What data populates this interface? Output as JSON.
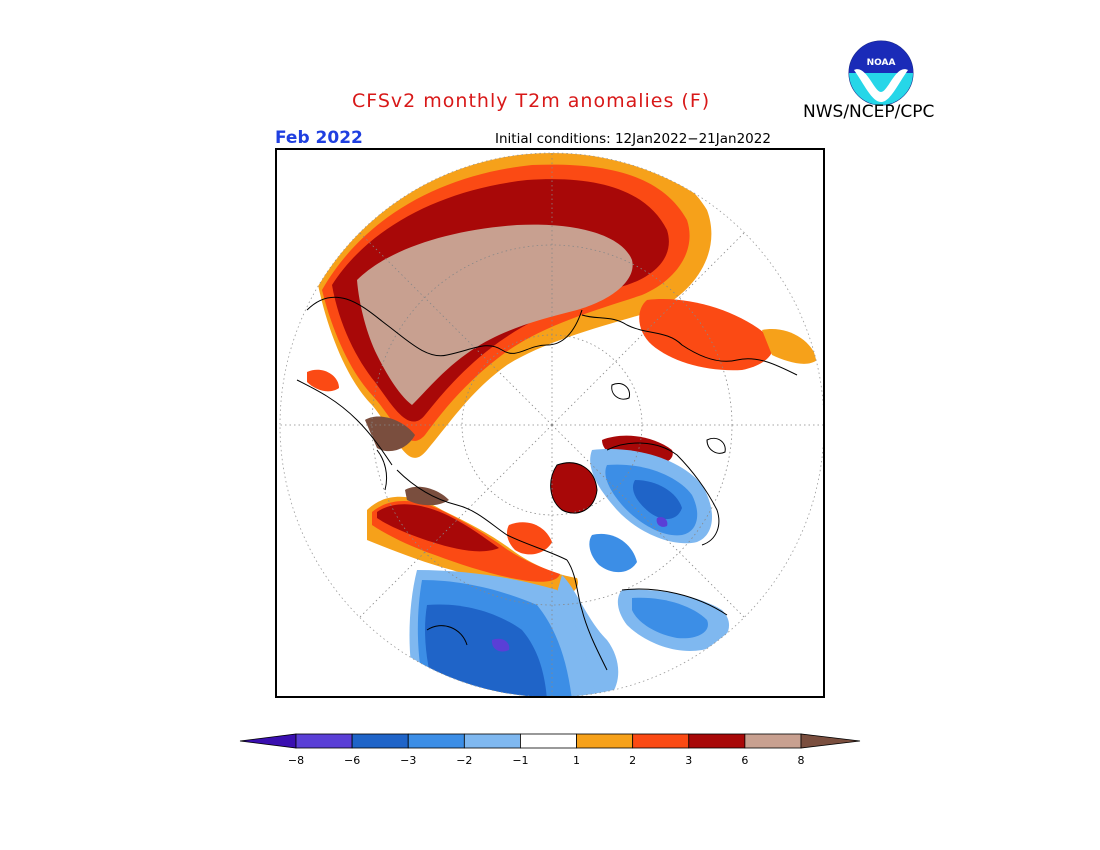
{
  "title": "CFSv2 monthly T2m anomalies (F)",
  "agency": "NWS/NCEP/CPC",
  "logo_text": "NOAA",
  "forecast_month": "Feb 2022",
  "initial_conditions": "Initial conditions: 12Jan2022−21Jan2022",
  "colors": {
    "title": "#d81818",
    "month": "#1f3fe0",
    "bins": [
      "#3a0fb0",
      "#5a3fd6",
      "#1f64c8",
      "#3c8ee6",
      "#7fb8f0",
      "#ffffff",
      "#f6a11a",
      "#fb4a14",
      "#a80808",
      "#c8a090",
      "#7a4e3e"
    ]
  },
  "colorbar": {
    "tick_labels": [
      "−8",
      "−6",
      "−3",
      "−2",
      "−1",
      "1",
      "2",
      "3",
      "6",
      "8"
    ]
  }
}
